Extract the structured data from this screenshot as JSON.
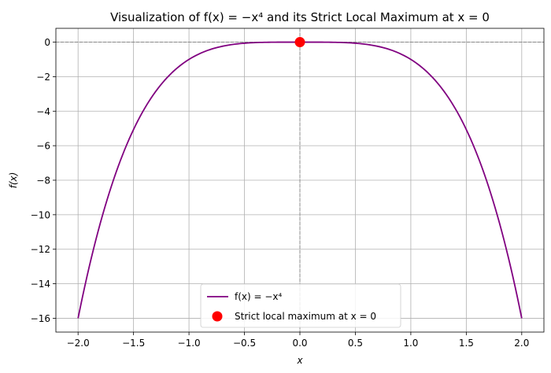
{
  "chart_data": {
    "type": "line",
    "title": "Visualization of f(x) = −x⁴ and its Strict Local Maximum at x = 0",
    "xlabel": "x",
    "ylabel": "f(x)",
    "xlim": [
      -2.2,
      2.2
    ],
    "ylim": [
      -16.8,
      0.8
    ],
    "xticks": [
      -2.0,
      -1.5,
      -1.0,
      -0.5,
      0.0,
      0.5,
      1.0,
      1.5,
      2.0
    ],
    "xtick_labels": [
      "−2.0",
      "−1.5",
      "−1.0",
      "−0.5",
      "0.0",
      "0.5",
      "1.0",
      "1.5",
      "2.0"
    ],
    "yticks": [
      0,
      -2,
      -4,
      -6,
      -8,
      -10,
      -12,
      -14,
      -16
    ],
    "ytick_labels": [
      "0",
      "−2",
      "−4",
      "−6",
      "−8",
      "−10",
      "−12",
      "−14",
      "−16"
    ],
    "grid": true,
    "reference_lines": {
      "horizontal": 0,
      "vertical": 0
    },
    "series": [
      {
        "name": "f(x) = −x⁴",
        "kind": "line",
        "color": "#800080",
        "function": "-x^4",
        "x_range": [
          -2,
          2
        ]
      },
      {
        "name": "Strict local maximum at x = 0",
        "kind": "point",
        "color": "#ff0000",
        "x": 0,
        "y": 0
      }
    ],
    "legend": {
      "placement": "lower-center",
      "entries": [
        "f(x) = −x⁴",
        "Strict local maximum at x = 0"
      ]
    }
  }
}
